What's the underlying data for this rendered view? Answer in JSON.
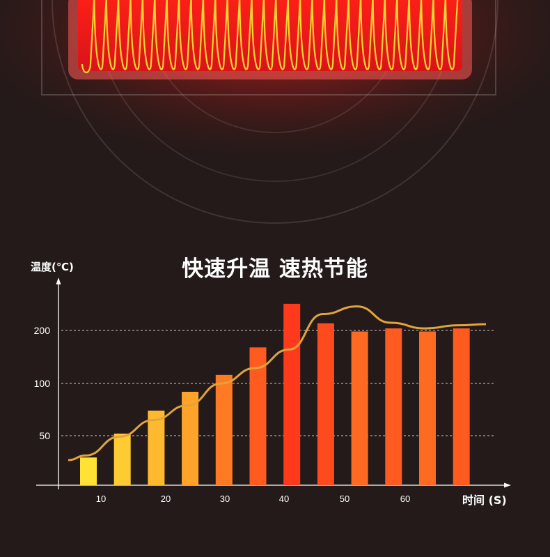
{
  "chart_data": {
    "type": "bar",
    "title": "快速升温 速热节能",
    "ylabel": "温度(℃)",
    "xlabel": "时间 (S)",
    "y_ticks": [
      50,
      100,
      200
    ],
    "x_ticks": [
      10,
      20,
      30,
      40,
      50,
      60
    ],
    "values": [
      28,
      52,
      74,
      92,
      116,
      168,
      252,
      214,
      198,
      204,
      198,
      204
    ],
    "line_values": [
      30,
      49,
      65,
      79,
      100,
      129,
      164,
      232,
      247,
      215,
      204,
      210
    ],
    "grid": true,
    "bar_colors": [
      "#ffe234",
      "#ffcb33",
      "#ffb92f",
      "#ffa32a",
      "#ff7a22",
      "#ff5a1f",
      "#ff3a1c",
      "#ff4a1e",
      "#ff6a22",
      "#ff5a1f",
      "#ff6a22",
      "#ff5a1f"
    ],
    "line_color": "#e0a43a"
  }
}
